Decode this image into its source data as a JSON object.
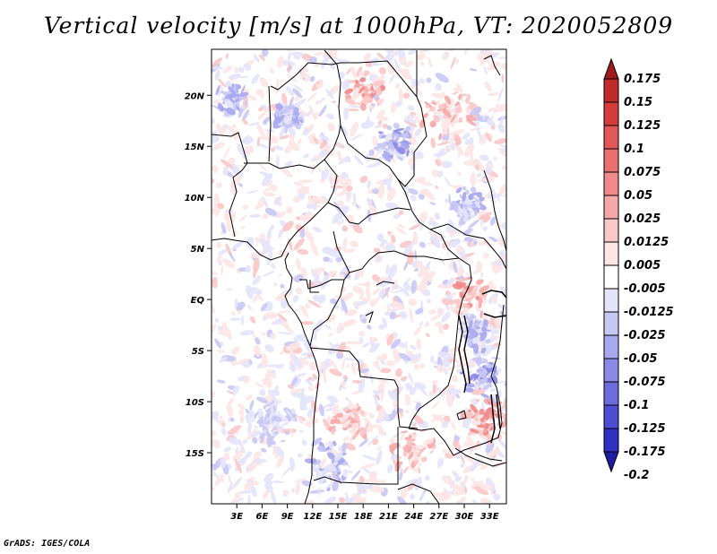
{
  "title": "Vertical velocity [m/s] at 1000hPa, VT: 2020052809",
  "credit": "GrADS: IGES/COLA",
  "map": {
    "lon_range": [
      0,
      35
    ],
    "lat_range": [
      -20,
      24.5
    ],
    "lon_ticks": [
      "3E",
      "6E",
      "9E",
      "12E",
      "15E",
      "18E",
      "21E",
      "24E",
      "27E",
      "30E",
      "33E"
    ],
    "lat_ticks": [
      "20N",
      "15N",
      "10N",
      "5N",
      "EQ",
      "5S",
      "10S",
      "15S"
    ]
  },
  "colorbar": {
    "labels": [
      "0.175",
      "0.15",
      "0.125",
      "0.1",
      "0.075",
      "0.05",
      "0.025",
      "0.0125",
      "0.005",
      "-0.005",
      "-0.0125",
      "-0.025",
      "-0.05",
      "-0.075",
      "-0.1",
      "-0.125",
      "-0.175",
      "-0.2"
    ],
    "colors": [
      "#a01c1c",
      "#c02a2a",
      "#d63c3c",
      "#e25858",
      "#ea7070",
      "#f08a8a",
      "#f5a8a8",
      "#fac8c8",
      "#fde6e6",
      "#ffffff",
      "#e4e4fb",
      "#c8c8f5",
      "#a8a8ee",
      "#8a8ae6",
      "#6c6cde",
      "#4e4ed4",
      "#3030c4",
      "#1c1ca0"
    ]
  }
}
